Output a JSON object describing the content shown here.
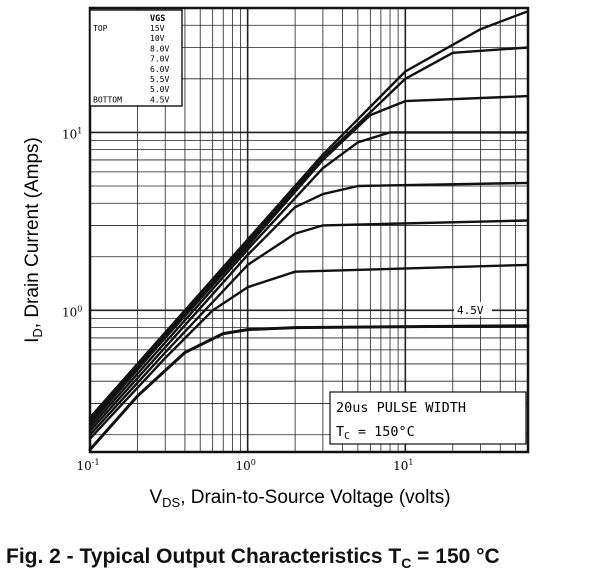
{
  "chart_data": {
    "type": "line",
    "title": "Fig. 2 - Typical Output Characteristics",
    "title_suffix_symbol": "T",
    "title_suffix_sub": "C",
    "title_suffix_value": "= 150 °C",
    "xlabel_main": "V",
    "xlabel_sub": "DS",
    "xlabel_rest": ", Drain-to-Source Voltage (volts)",
    "ylabel_main": "I",
    "ylabel_sub": "D",
    "ylabel_rest": ", Drain Current (Amps)",
    "x_scale": "log",
    "y_scale": "log",
    "xlim": [
      0.1,
      60
    ],
    "ylim": [
      0.16,
      50
    ],
    "grid": true,
    "x_ticks": [
      {
        "value": 0.1,
        "base": "10",
        "exp": "-1"
      },
      {
        "value": 1,
        "base": "10",
        "exp": "0"
      },
      {
        "value": 10,
        "base": "10",
        "exp": "1"
      }
    ],
    "y_ticks": [
      {
        "value": 1,
        "base": "10",
        "exp": "0"
      },
      {
        "value": 10,
        "base": "10",
        "exp": "1"
      }
    ],
    "legend": {
      "placement": "top-left",
      "header_vgs": "VGS",
      "rows": [
        {
          "label": "TOP",
          "value": "15V"
        },
        {
          "label": "",
          "value": "10V"
        },
        {
          "label": "",
          "value": "8.0V"
        },
        {
          "label": "",
          "value": "7.0V"
        },
        {
          "label": "",
          "value": "6.0V"
        },
        {
          "label": "",
          "value": "5.5V"
        },
        {
          "label": "",
          "value": "5.0V"
        },
        {
          "label": "BOTTOM",
          "value": "4.5V"
        }
      ]
    },
    "annotations": {
      "curve_label": "4.5V",
      "box_line1": "20us PULSE WIDTH",
      "box_line2_symbol": "T",
      "box_line2_sub": "C",
      "box_line2_rest": "= 150°C"
    },
    "series": [
      {
        "name": "15V",
        "x": [
          0.1,
          0.3,
          1,
          3,
          10,
          30,
          60
        ],
        "y": [
          0.25,
          0.75,
          2.5,
          7.5,
          22,
          38,
          48
        ]
      },
      {
        "name": "10V",
        "x": [
          0.1,
          0.3,
          1,
          3,
          10,
          20,
          60
        ],
        "y": [
          0.24,
          0.72,
          2.4,
          7.2,
          20,
          28,
          30
        ]
      },
      {
        "name": "8.0V",
        "x": [
          0.1,
          0.3,
          1,
          3,
          6,
          10,
          60
        ],
        "y": [
          0.23,
          0.7,
          2.3,
          7,
          12.5,
          15,
          16
        ]
      },
      {
        "name": "7.0V",
        "x": [
          0.1,
          0.3,
          1,
          3,
          5,
          8,
          60
        ],
        "y": [
          0.22,
          0.66,
          2.2,
          6.3,
          8.8,
          10,
          10
        ]
      },
      {
        "name": "6.0V",
        "x": [
          0.1,
          0.3,
          1,
          2,
          3,
          5,
          60
        ],
        "y": [
          0.21,
          0.62,
          2.05,
          3.8,
          4.5,
          5,
          5.2
        ]
      },
      {
        "name": "5.5V",
        "x": [
          0.1,
          0.3,
          1,
          2,
          3,
          60
        ],
        "y": [
          0.2,
          0.58,
          1.8,
          2.7,
          3,
          3.2
        ]
      },
      {
        "name": "5.0V",
        "x": [
          0.1,
          0.3,
          0.6,
          1,
          2,
          60
        ],
        "y": [
          0.19,
          0.54,
          1,
          1.35,
          1.65,
          1.8
        ]
      },
      {
        "name": "4.5V",
        "x": [
          0.1,
          0.2,
          0.4,
          0.7,
          1,
          2,
          60
        ],
        "y": [
          0.165,
          0.33,
          0.58,
          0.74,
          0.78,
          0.8,
          0.82
        ]
      }
    ]
  }
}
